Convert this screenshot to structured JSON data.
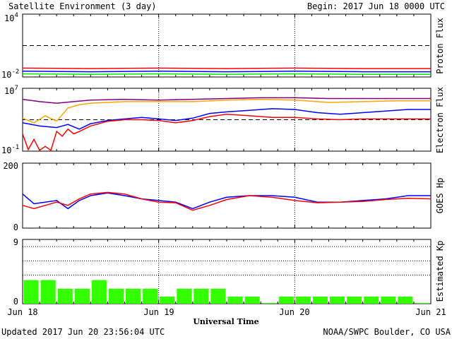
{
  "header": {
    "title": "Satellite Environment (3 day)",
    "begin": "Begin:  2017 Jun 18 0000 UTC"
  },
  "footer": {
    "updated": "Updated 2017 Jun 20 23:56:04 UTC",
    "credit": "NOAA/SWPC Boulder, CO USA"
  },
  "x_axis": {
    "title": "Universal Time",
    "ticks": [
      "Jun 18",
      "Jun 19",
      "Jun 20",
      "Jun 21"
    ]
  },
  "panels": {
    "proton": {
      "ylabel": "Proton Flux",
      "ytick_top_base": "10",
      "ytick_top_exp": "4",
      "ytick_bottom_base": "10",
      "ytick_bottom_exp": "-2"
    },
    "electron": {
      "ylabel": "Electron Flux",
      "ytick_top_base": "10",
      "ytick_top_exp": "7",
      "ytick_bottom_base": "10",
      "ytick_bottom_exp": "-1"
    },
    "hp": {
      "ylabel": "GOES Hp",
      "ytick_top": "200",
      "ytick_bottom": "0"
    },
    "kp": {
      "ylabel": "Estimated Kp",
      "ytick_top": "9",
      "ytick_bottom": "0"
    }
  },
  "colors": {
    "red": "#ff0000",
    "blue": "#0000ff",
    "green": "#00ee00",
    "orange": "#ffa500",
    "purple": "#800080",
    "kp_bar": "#33ff00"
  },
  "chart_data": [
    {
      "type": "line",
      "panel": "proton",
      "ylim": [
        -2,
        4
      ],
      "yscale": "log",
      "threshold": 1,
      "series": [
        {
          "color": "red",
          "x": [
            0,
            12,
            24,
            36,
            48,
            60,
            72
          ],
          "y": [
            -1.15,
            -1.2,
            -1.15,
            -1.2,
            -1.15,
            -1.2,
            -1.2
          ]
        },
        {
          "color": "blue",
          "x": [
            0,
            12,
            24,
            36,
            48,
            60,
            72
          ],
          "y": [
            -1.45,
            -1.5,
            -1.45,
            -1.5,
            -1.45,
            -1.5,
            -1.5
          ]
        },
        {
          "color": "green",
          "x": [
            0,
            12,
            24,
            36,
            48,
            60,
            72
          ],
          "y": [
            -1.7,
            -1.75,
            -1.7,
            -1.75,
            -1.7,
            -1.75,
            -1.75
          ]
        }
      ]
    },
    {
      "type": "line",
      "panel": "electron",
      "ylim": [
        -1,
        7
      ],
      "yscale": "log",
      "threshold": 3,
      "series": [
        {
          "color": "purple",
          "x": [
            0,
            3,
            6,
            9,
            12,
            18,
            24,
            30,
            36,
            42,
            48,
            54,
            60,
            66,
            72
          ],
          "y": [
            5.6,
            5.3,
            5.1,
            5.3,
            5.5,
            5.6,
            5.5,
            5.6,
            5.7,
            5.8,
            5.8,
            5.7,
            5.7,
            5.7,
            5.7
          ]
        },
        {
          "color": "orange",
          "x": [
            0,
            2,
            4,
            6,
            8,
            10,
            12,
            18,
            24,
            30,
            36,
            42,
            48,
            54,
            60,
            66,
            72
          ],
          "y": [
            3.2,
            2.6,
            3.5,
            2.8,
            4.5,
            4.9,
            5.1,
            5.3,
            5.3,
            5.3,
            5.5,
            5.6,
            5.5,
            5.2,
            5.3,
            5.4,
            5.4
          ]
        },
        {
          "color": "blue",
          "x": [
            0,
            3,
            6,
            8,
            10,
            12,
            15,
            18,
            21,
            24,
            27,
            30,
            33,
            36,
            40,
            44,
            48,
            52,
            56,
            60,
            64,
            68,
            72
          ],
          "y": [
            2.6,
            2.2,
            2.0,
            2.4,
            1.8,
            2.5,
            2.9,
            3.1,
            3.3,
            3.1,
            2.9,
            3.2,
            3.8,
            4.0,
            4.2,
            4.4,
            4.3,
            3.9,
            3.7,
            3.9,
            4.1,
            4.3,
            4.3
          ]
        },
        {
          "color": "red",
          "x": [
            0,
            1,
            2,
            3,
            4,
            5,
            6,
            7,
            8,
            9,
            10,
            12,
            15,
            18,
            21,
            24,
            27,
            30,
            33,
            36,
            40,
            44,
            48,
            52,
            56,
            60,
            64,
            68,
            72
          ],
          "y": [
            1.2,
            -0.8,
            0.5,
            -0.9,
            -0.4,
            -0.9,
            1.5,
            0.9,
            1.8,
            1.2,
            1.5,
            2.2,
            2.8,
            3.0,
            3.0,
            2.9,
            2.6,
            2.9,
            3.4,
            3.7,
            3.5,
            3.3,
            3.3,
            3.1,
            3.0,
            3.1,
            3.1,
            3.1,
            3.1
          ]
        }
      ]
    },
    {
      "type": "line",
      "panel": "hp",
      "ylim": [
        0,
        200
      ],
      "series": [
        {
          "color": "blue",
          "x": [
            0,
            2,
            4,
            6,
            8,
            10,
            12,
            15,
            18,
            21,
            24,
            27,
            30,
            33,
            36,
            40,
            44,
            48,
            52,
            56,
            60,
            64,
            68,
            72
          ],
          "y": [
            105,
            75,
            80,
            85,
            60,
            85,
            100,
            108,
            100,
            90,
            85,
            80,
            60,
            80,
            95,
            100,
            100,
            95,
            80,
            80,
            85,
            90,
            100,
            100
          ]
        },
        {
          "color": "red",
          "x": [
            0,
            2,
            4,
            6,
            8,
            10,
            12,
            15,
            18,
            21,
            24,
            27,
            30,
            33,
            36,
            40,
            44,
            48,
            52,
            56,
            60,
            64,
            68,
            72
          ],
          "y": [
            70,
            60,
            70,
            80,
            70,
            90,
            105,
            110,
            105,
            90,
            80,
            78,
            55,
            70,
            88,
            100,
            95,
            85,
            78,
            80,
            82,
            88,
            92,
            90
          ]
        }
      ]
    },
    {
      "type": "bar",
      "panel": "kp",
      "ylim": [
        0,
        9
      ],
      "grid_lines": [
        4,
        6,
        8
      ],
      "x": [
        0,
        3,
        6,
        9,
        12,
        15,
        18,
        21,
        24,
        27,
        30,
        33,
        36,
        39,
        42,
        45,
        48,
        51,
        54,
        57,
        60,
        63,
        66,
        69
      ],
      "values": [
        3.3,
        3.3,
        2.1,
        2.1,
        3.3,
        2.1,
        2.1,
        2.1,
        1.0,
        2.1,
        2.1,
        2.1,
        1.0,
        1.0,
        0.1,
        1.0,
        1.0,
        1.0,
        1.0,
        1.0,
        1.0,
        1.0,
        1.0,
        0.1
      ]
    }
  ]
}
